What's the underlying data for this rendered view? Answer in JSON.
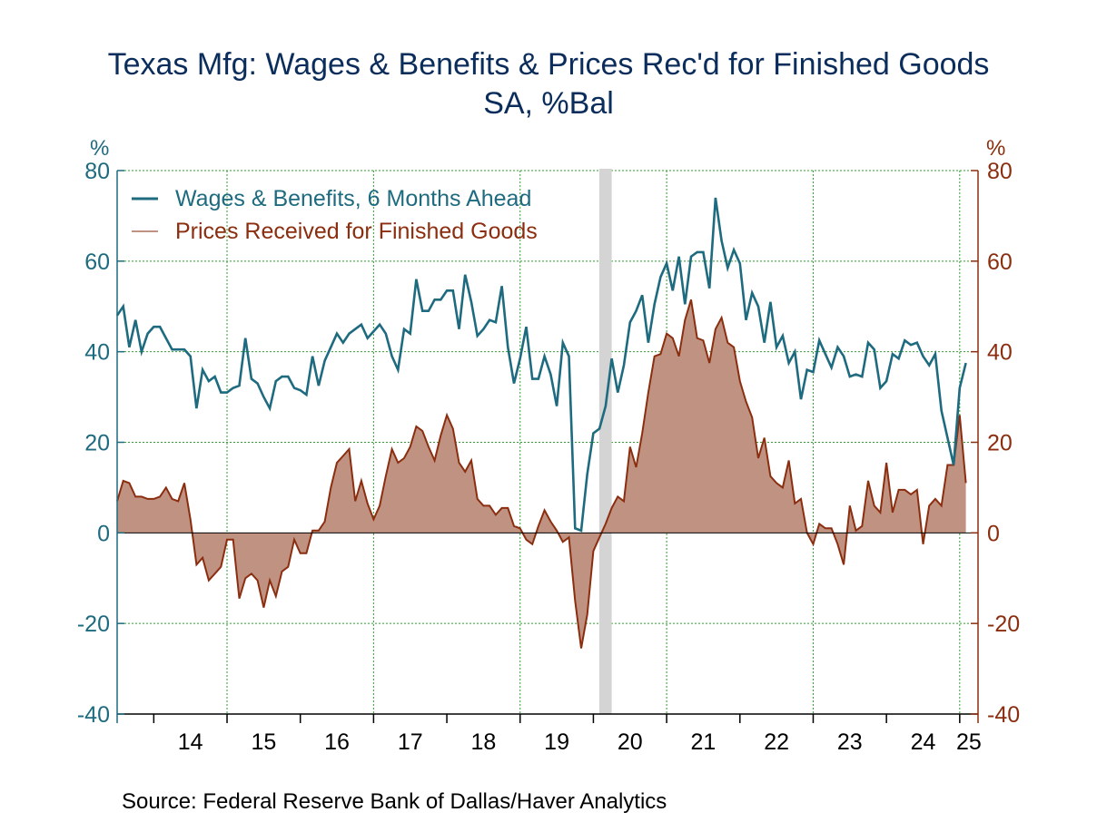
{
  "chart_data": {
    "type": "line",
    "title": "Texas Mfg: Wages & Benefits & Prices Rec'd for Finished Goods",
    "subtitle": "SA, %Bal",
    "left_axis_label": "%",
    "right_axis_label": "%",
    "ylim": [
      -40,
      80
    ],
    "yticks": [
      -40,
      -20,
      0,
      20,
      40,
      60,
      80
    ],
    "x_range": [
      2013.5,
      2025.25
    ],
    "x_tick_labels": [
      "14",
      "15",
      "16",
      "17",
      "18",
      "19",
      "20",
      "21",
      "22",
      "23",
      "24",
      "25"
    ],
    "grid": true,
    "legend_position": "top-left",
    "recession_band": [
      2020.08,
      2020.25
    ],
    "source": "Source:  Federal Reserve Bank of Dallas/Haver Analytics",
    "series": [
      {
        "name": "Wages & Benefits, 6 Months Ahead",
        "color": "#1e6b80",
        "style": "line",
        "axis": "left",
        "values": [
          48,
          50,
          41,
          47,
          40,
          44,
          45.5,
          45.5,
          43,
          40.5,
          40.5,
          40.5,
          39,
          27.5,
          36,
          33.5,
          34.5,
          31,
          31,
          32,
          32.5,
          43,
          34,
          33,
          30,
          27.5,
          33.5,
          34.5,
          34.5,
          32,
          31.5,
          30.5,
          39,
          32.5,
          38,
          41,
          44,
          42,
          44,
          45,
          46,
          43,
          44.5,
          46,
          44,
          39,
          36,
          45,
          44,
          56,
          49,
          49,
          51.5,
          51.5,
          53.5,
          53.5,
          45,
          57,
          51,
          43.5,
          45,
          47,
          46.5,
          54.5,
          41,
          33,
          38.5,
          45.5,
          34,
          34,
          39,
          35,
          28,
          42,
          39,
          1,
          0.5,
          13,
          22,
          23,
          28,
          38.5,
          31,
          37,
          46.5,
          49,
          52.5,
          42,
          50.5,
          56.5,
          59.5,
          53.5,
          61,
          50.5,
          61,
          62,
          62,
          54,
          74,
          64.5,
          58.5,
          62.5,
          59.5,
          47,
          53,
          50,
          42,
          51,
          41,
          43.5,
          37.5,
          40,
          29.5,
          36,
          35.5,
          42.5,
          39.5,
          36.5,
          41,
          39,
          34.5,
          35,
          34.5,
          42,
          40.5,
          32,
          33.5,
          39.5,
          38.5,
          42.5,
          41.5,
          42,
          39,
          37,
          39.5,
          27,
          21,
          15,
          32,
          37.5
        ]
      },
      {
        "name": "Prices Received for Finished Goods",
        "color": "#8b2e0f",
        "fill": "#c09282",
        "style": "area",
        "axis": "right",
        "values": [
          7,
          11.5,
          11,
          8,
          8,
          7.5,
          7.5,
          8,
          10,
          7.5,
          7,
          11,
          3,
          -7,
          -5.5,
          -10.5,
          -9,
          -7.5,
          -1.5,
          -1.5,
          -14.5,
          -10,
          -9,
          -10.5,
          -16.5,
          -10.5,
          -14,
          -8.5,
          -7.5,
          -1.5,
          -4.5,
          -4.5,
          0.5,
          0.5,
          2.5,
          10,
          15.5,
          17,
          18.5,
          7,
          11.5,
          6.5,
          3,
          6,
          12.5,
          18.5,
          15.5,
          16.5,
          19,
          23.5,
          22.5,
          19,
          16,
          21.5,
          26,
          23,
          15.5,
          13.5,
          16,
          7.5,
          6,
          6,
          4,
          5.5,
          5.5,
          1.5,
          1,
          -1.5,
          -2.5,
          1.5,
          5,
          2.5,
          0.5,
          -2,
          -1,
          -15,
          -25.5,
          -18,
          -4,
          -1,
          2,
          5.5,
          8,
          7,
          19,
          14.5,
          22,
          31,
          39,
          39.5,
          44,
          43,
          39,
          47,
          51.5,
          43,
          42.5,
          37.5,
          45,
          47.5,
          42,
          41,
          33.5,
          29,
          25.5,
          16.5,
          21,
          12.5,
          11,
          10,
          16,
          6.5,
          7.5,
          0,
          -2.5,
          2,
          1,
          1,
          -2.5,
          -7,
          6,
          0.5,
          1.5,
          11.5,
          6,
          4.5,
          15.5,
          4.5,
          9.5,
          9.5,
          8.5,
          9.5,
          -2.5,
          6,
          7.5,
          6,
          15,
          15,
          26,
          11
        ]
      }
    ]
  }
}
